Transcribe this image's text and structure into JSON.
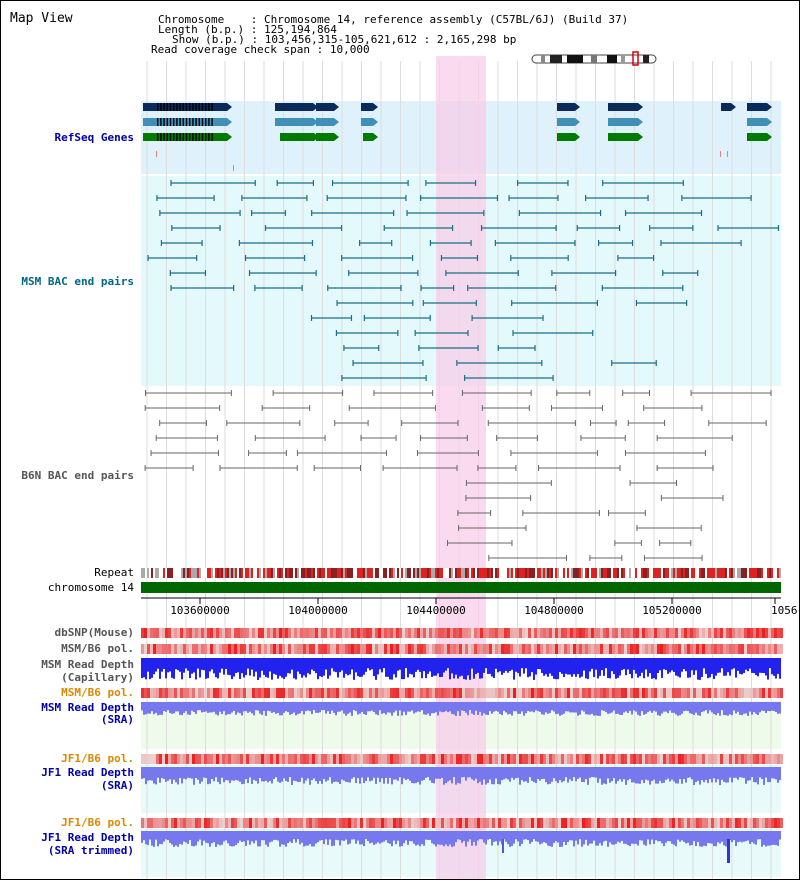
{
  "title": "Map View",
  "info": {
    "chromosome_label": "Chromosome",
    "chromosome_value": "Chromosome 14, reference assembly (C57BL/6J) (Build 37)",
    "length_label": "Length (b.p.)",
    "length_value": "125,194,864",
    "show_label": "Show (b.p.)",
    "show_value": "103,456,315-105,621,612 : 2,165,298 bp",
    "coverage_label": "Read coverage check span",
    "coverage_value": "10,000"
  },
  "tracks": {
    "refseq": "RefSeq Genes",
    "msm_bac": "MSM BAC end pairs",
    "b6n_bac": "B6N BAC end pairs",
    "repeat": "Repeat",
    "chromosome": "chromosome 14",
    "dbsnp": "dbSNP(Mouse)",
    "msm_b6_pol": "MSM/B6 pol.",
    "msm_read_depth_cap_1": "MSM Read Depth",
    "msm_read_depth_cap_2": "(Capillary)",
    "msm_b6_pol_2": "MSM/B6 pol.",
    "msm_read_depth_sra_1": "MSM Read Depth",
    "msm_read_depth_sra_2": "(SRA)",
    "jf1_b6_pol": "JF1/B6 pol.",
    "jf1_read_depth_sra_1": "JF1 Read Depth",
    "jf1_read_depth_sra_2": "(SRA)",
    "jf1_b6_pol_2": "JF1/B6 pol.",
    "jf1_read_depth_trim_1": "JF1 Read Depth",
    "jf1_read_depth_trim_2": "(SRA trimmed)"
  },
  "axis_ticks": [
    "103600000",
    "104000000",
    "104400000",
    "104800000",
    "105200000",
    "1056"
  ],
  "colors": {
    "refseq_bg": "#dff1fb",
    "msm_bg": "#e4f9fb",
    "highlight": "#f7cdea",
    "chromosome_bar": "#006600",
    "gene_dark": "#0a2a5a",
    "gene_mid": "#3f8fb8",
    "gene_green": "#007a00",
    "msm_line": "#1a6f88",
    "b6n_line": "#666666",
    "depth_blue": "#2222ee",
    "depth_light": "#7777ee"
  }
}
